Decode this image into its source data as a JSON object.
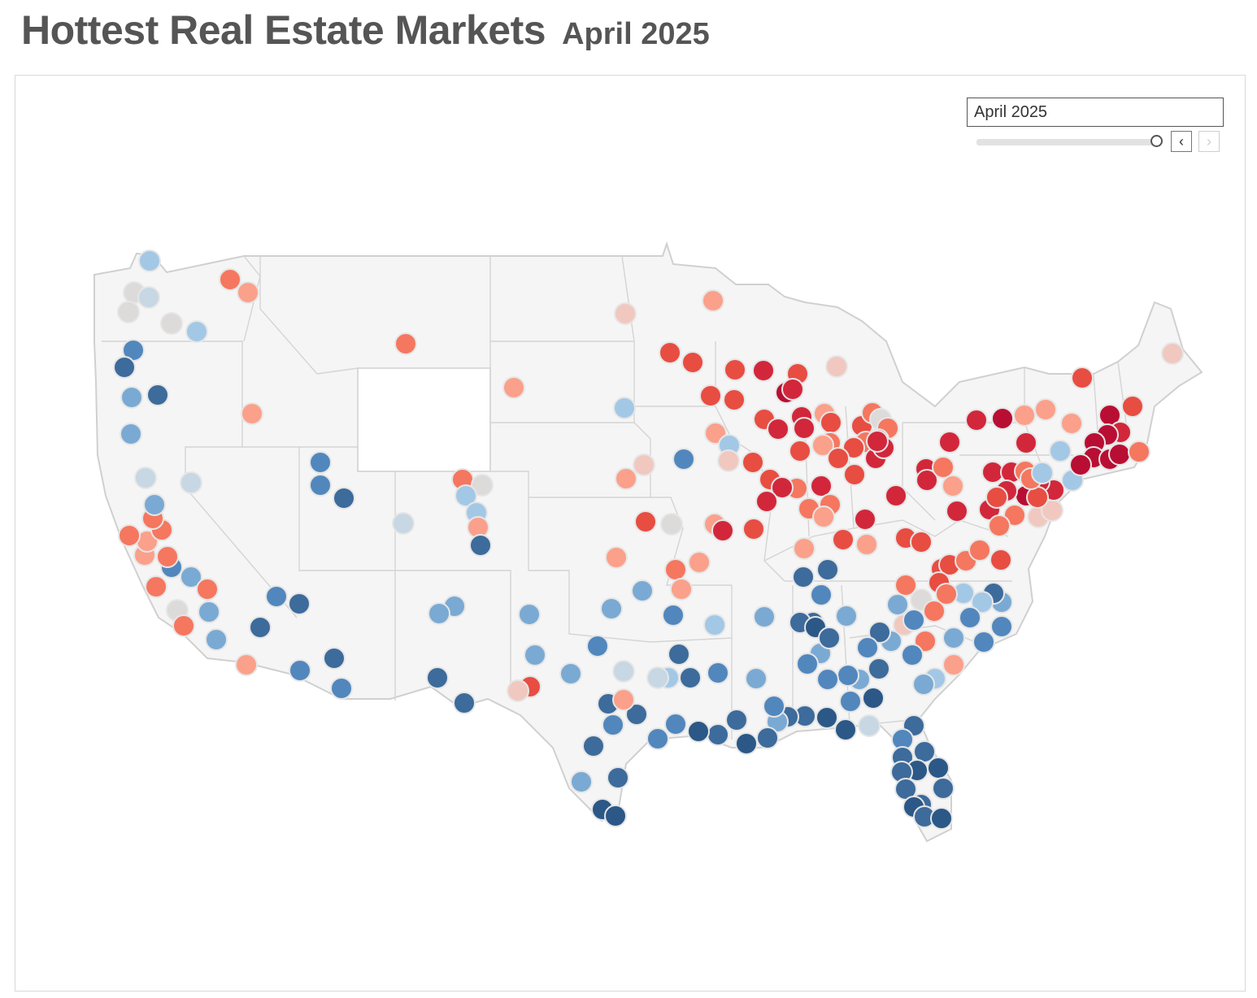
{
  "header": {
    "title": "Hottest Real Estate Markets",
    "subtitle": "April 2025"
  },
  "filter": {
    "value": "April 2025",
    "prev_icon": "chevron-left-icon",
    "next_icon": "chevron-right-icon",
    "prev_glyph": "‹",
    "next_glyph": "›",
    "slider_position": 1.0
  },
  "map": {
    "type": "symbol-map",
    "region": "Contiguous United States",
    "colors": {
      "land": "#f5f5f5",
      "borders": "#cfcfcf",
      "marker_outline": "#e6e6e6",
      "scale": [
        "#2b5887",
        "#3d6b9b",
        "#5287bd",
        "#7aaad3",
        "#a3c8e6",
        "#c7d7e3",
        "#dddada",
        "#f1c8bf",
        "#fba08a",
        "#f5775f",
        "#e84d42",
        "#d2273b",
        "#b90e33"
      ]
    }
  }
}
